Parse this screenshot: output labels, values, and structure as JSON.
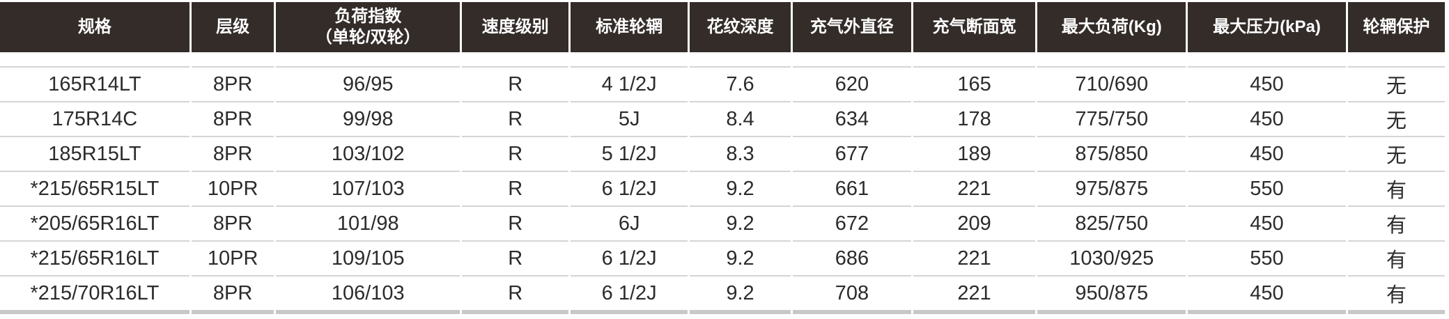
{
  "headers": [
    "规格",
    "层级",
    "负荷指数\n（单轮/双轮）",
    "速度级别",
    "标准轮辋",
    "花纹深度",
    "充气外直径",
    "充气断面宽",
    "最大负荷(Kg)",
    "最大压力(kPa)",
    "轮辋保护"
  ],
  "header_lines": {
    "load_index_1": "负荷指数",
    "load_index_2": "（单轮/双轮）"
  },
  "rows": [
    [
      "165R14LT",
      "8PR",
      "96/95",
      "R",
      "4 1/2J",
      "7.6",
      "620",
      "165",
      "710/690",
      "450",
      "无"
    ],
    [
      "175R14C",
      "8PR",
      "99/98",
      "R",
      "5J",
      "8.4",
      "634",
      "178",
      "775/750",
      "450",
      "无"
    ],
    [
      "185R15LT",
      "8PR",
      "103/102",
      "R",
      "5 1/2J",
      "8.3",
      "677",
      "189",
      "875/850",
      "450",
      "无"
    ],
    [
      "*215/65R15LT",
      "10PR",
      "107/103",
      "R",
      "6 1/2J",
      "9.2",
      "661",
      "221",
      "975/875",
      "550",
      "有"
    ],
    [
      "*205/65R16LT",
      "8PR",
      "101/98",
      "R",
      "6J",
      "9.2",
      "672",
      "209",
      "825/750",
      "450",
      "有"
    ],
    [
      "*215/65R16LT",
      "10PR",
      "109/105",
      "R",
      "6 1/2J",
      "9.2",
      "686",
      "221",
      "1030/925",
      "550",
      "有"
    ],
    [
      "*215/70R16LT",
      "8PR",
      "106/103",
      "R",
      "6 1/2J",
      "9.2",
      "708",
      "221",
      "950/875",
      "450",
      "有"
    ]
  ]
}
